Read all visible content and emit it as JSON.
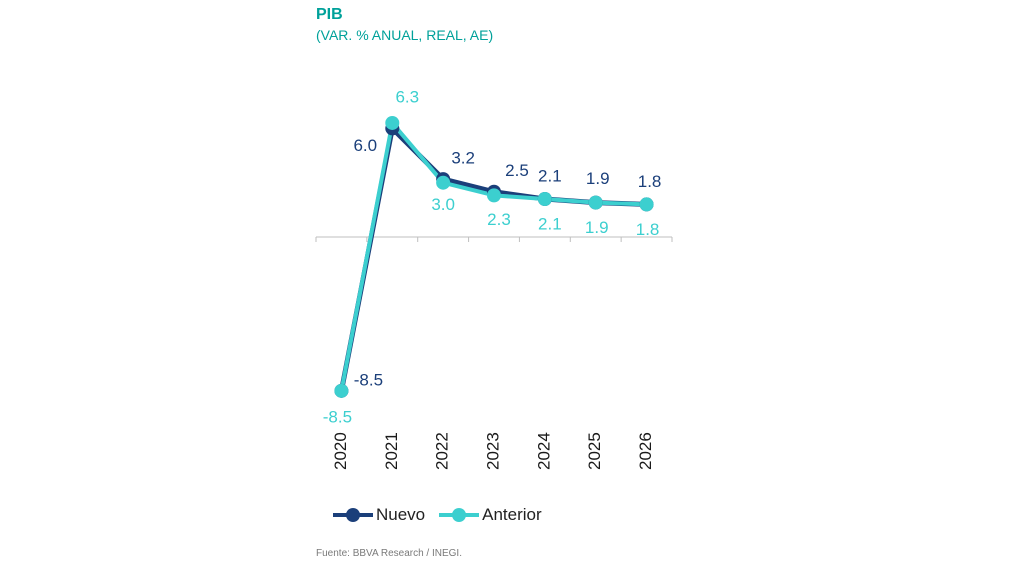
{
  "chart_data": {
    "type": "line",
    "title": "PIB",
    "subtitle": "(VAR. % ANUAL, REAL, AE)",
    "categories": [
      "2020",
      "2021",
      "2022",
      "2023",
      "2024",
      "2025",
      "2026"
    ],
    "series": [
      {
        "name": "Nuevo",
        "values": [
          -8.5,
          6.0,
          3.2,
          2.5,
          2.1,
          1.9,
          1.8
        ],
        "color": "#1b3f7a",
        "labels": [
          "-8.5",
          "6.0",
          "3.2",
          "2.5",
          "2.1",
          "1.9",
          "1.8"
        ]
      },
      {
        "name": "Anterior",
        "values": [
          -8.5,
          6.3,
          3.0,
          2.3,
          2.1,
          1.9,
          1.8
        ],
        "color": "#3ccfcf",
        "labels": [
          "-8.5",
          "6.3",
          "3.0",
          "2.3",
          "2.1",
          "1.9",
          "1.8"
        ]
      }
    ],
    "legend": "bottom-left",
    "grid": false,
    "source": "Fuente: BBVA Research / INEGI."
  }
}
